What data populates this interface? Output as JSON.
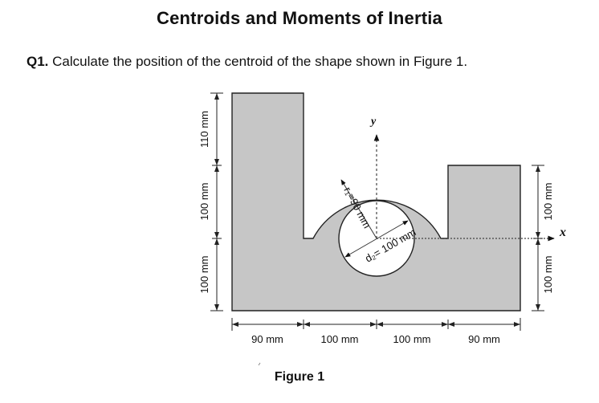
{
  "page": {
    "title": "Centroids and Moments of Inertia",
    "question": {
      "number": "Q1.",
      "text": " Calculate the position of the centroid of the shape shown in Figure 1."
    },
    "caption": "Figure 1"
  },
  "figure": {
    "axis_labels": {
      "y": "y",
      "x": "x"
    },
    "radius_label": "r₁=90 mm",
    "diameter_label": "d₂= 100 mm",
    "bottom_dimensions": [
      "90 mm",
      "100 mm",
      "100 mm",
      "90 mm"
    ],
    "left_dimensions": [
      "110 mm",
      "100 mm",
      "100 mm"
    ],
    "right_dimensions": [
      "100 mm",
      "100 mm"
    ],
    "colors": {
      "shape_fill": "#c6c6c6",
      "outline": "#222222",
      "hole": "#ffffff"
    }
  }
}
